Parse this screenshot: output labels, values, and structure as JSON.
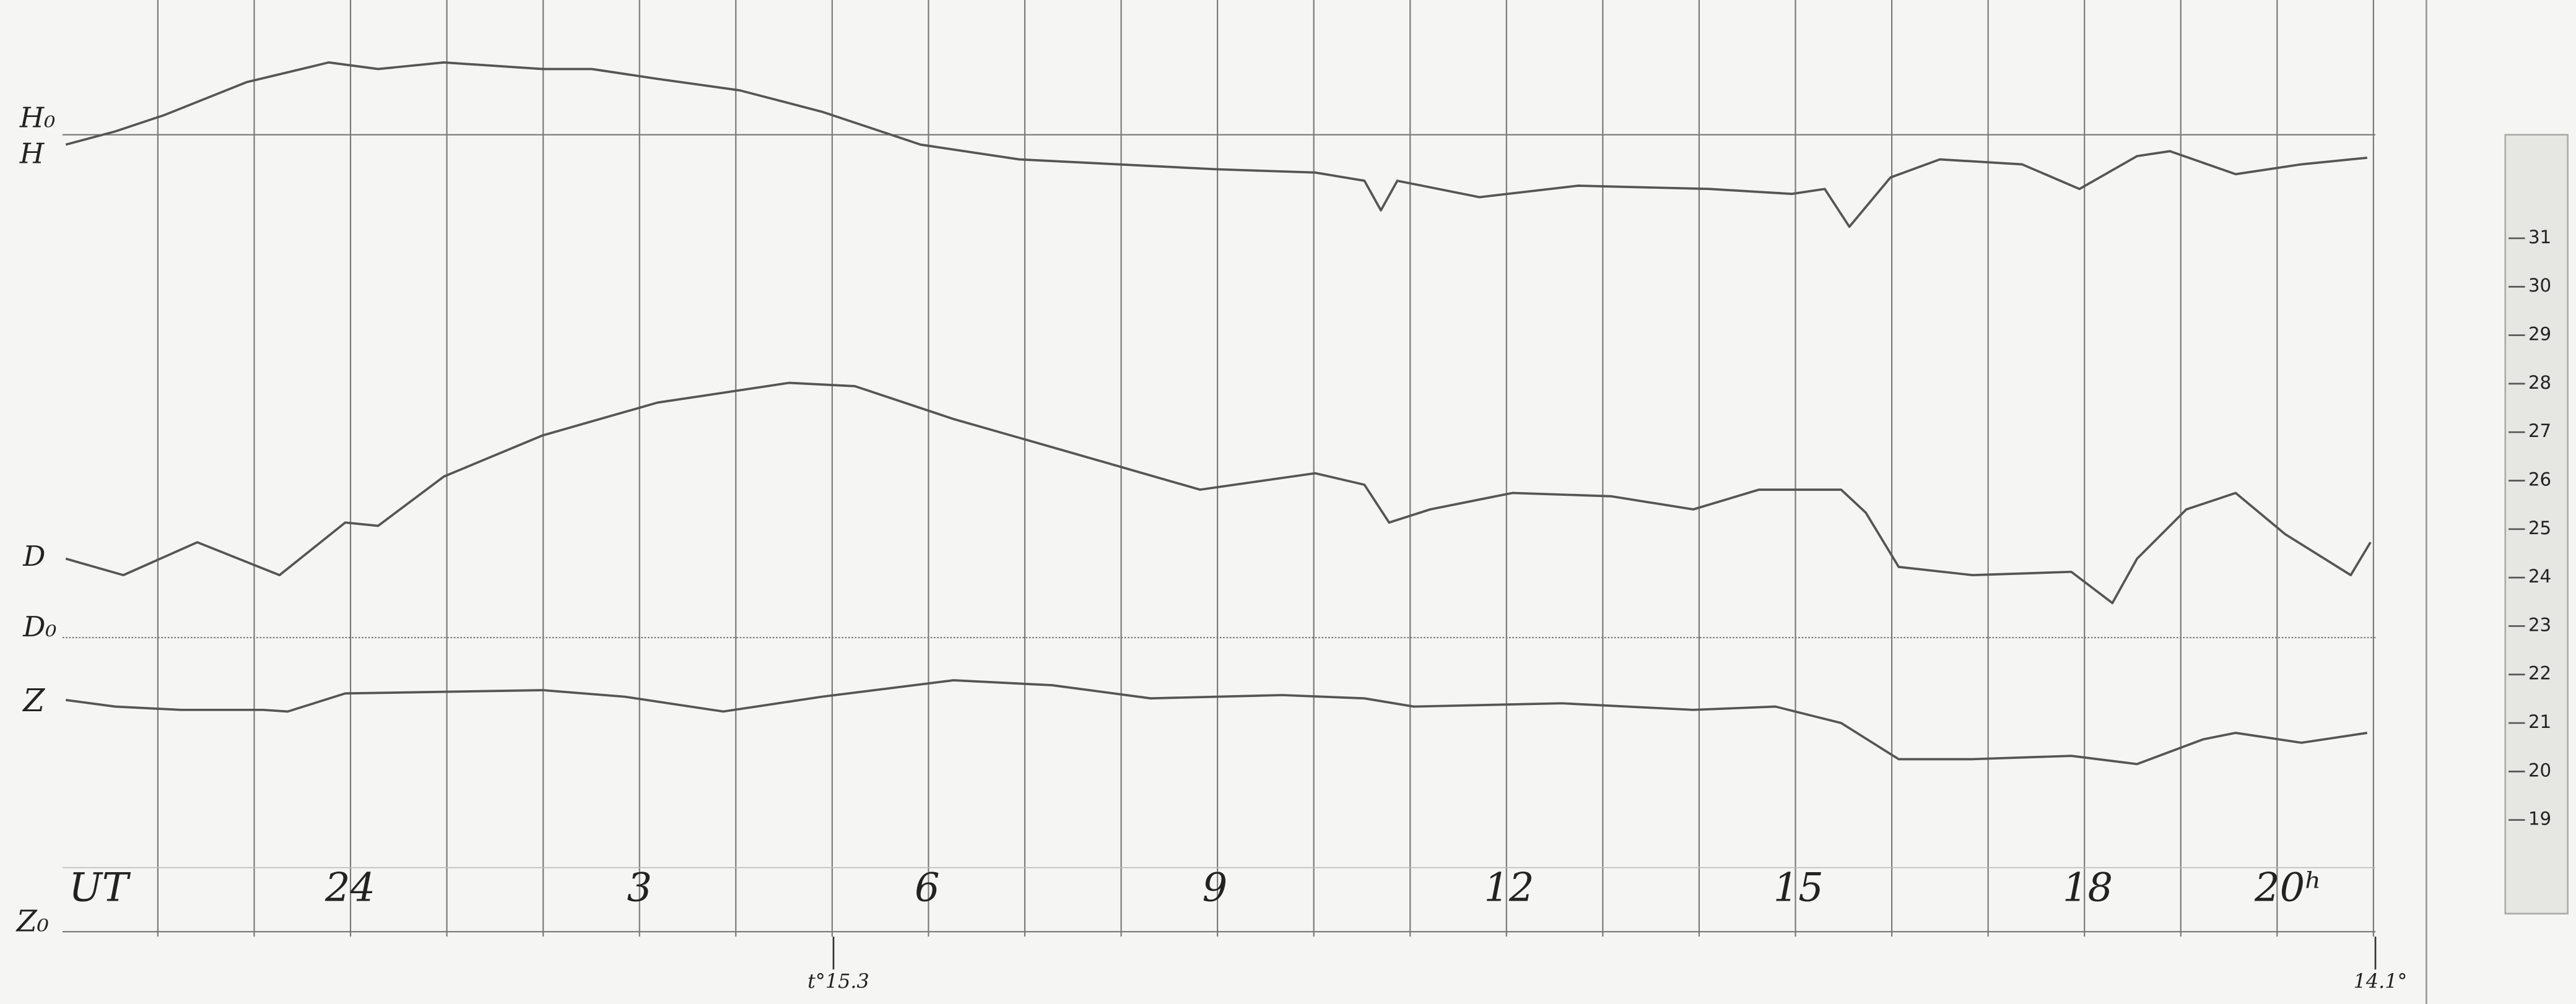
{
  "left_labels": [
    "H₀",
    "H",
    "D",
    "D₀",
    "Z"
  ],
  "time_labels": [
    "UT",
    "24",
    "3",
    "6",
    "9",
    "12",
    "15",
    "18",
    "20ʰ"
  ],
  "bottom_label": "Z₀",
  "temperature_marks": [
    "t°15.3",
    "14.1°"
  ],
  "scale_labels": [
    "31",
    "30",
    "29",
    "28",
    "27",
    "26",
    "25",
    "24",
    "23",
    "22",
    "21",
    "20",
    "19"
  ]
}
